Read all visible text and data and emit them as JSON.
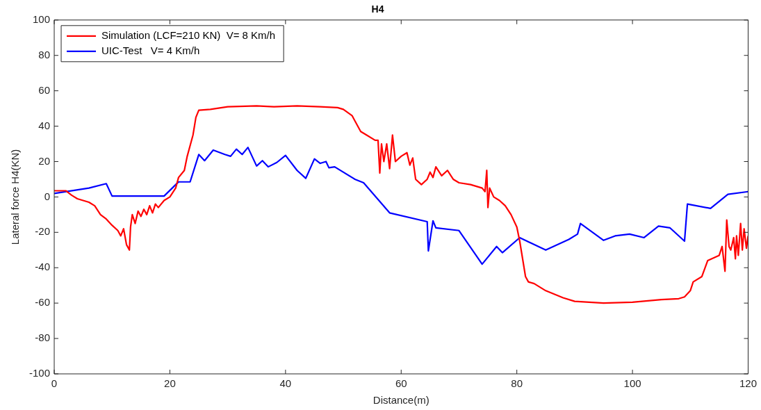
{
  "chart_data": {
    "type": "line",
    "title": "H4",
    "xlabel": "Distance(m)",
    "ylabel": "Lateral force H4(KN)",
    "xlim": [
      0,
      120
    ],
    "xticks": [
      0,
      20,
      40,
      60,
      80,
      100,
      120
    ],
    "ylim": [
      -100,
      100
    ],
    "yticks": [
      -100,
      -80,
      -60,
      -40,
      -20,
      0,
      20,
      40,
      60,
      80,
      100
    ],
    "grid": false,
    "legend": "top left",
    "marker": "none",
    "line_style": "solid",
    "series": [
      {
        "name": "Simulation (LCF=210 KN)  V= 8 Km/h",
        "color": "#ff0000",
        "x": [
          0,
          2,
          3,
          4,
          6,
          7,
          8,
          9,
          10,
          11,
          11.5,
          12,
          12.5,
          13,
          13.2,
          13.5,
          14,
          14.5,
          15,
          15.5,
          16,
          16.5,
          17,
          17.5,
          18,
          19,
          20,
          21,
          21.5,
          22.5,
          23,
          24,
          24.5,
          25,
          27,
          30,
          35,
          38,
          42,
          46,
          49,
          50,
          51.5,
          52,
          53,
          54,
          55.5,
          56,
          56.3,
          56.6,
          57,
          57.5,
          58,
          58.5,
          59,
          60,
          61,
          61.5,
          62,
          62.5,
          63.5,
          64.5,
          65,
          65.5,
          66,
          67,
          68,
          69,
          70,
          72,
          74,
          74.5,
          74.8,
          75,
          75.3,
          76,
          77,
          78,
          79,
          80,
          80.5,
          81,
          81.5,
          82,
          83,
          85,
          88,
          90,
          95,
          100,
          105,
          108,
          109,
          110,
          110.5,
          112,
          113,
          115,
          115.5,
          116,
          116.3,
          116.7,
          117,
          117.5,
          117.8,
          118,
          118.3,
          118.7,
          119,
          119.3,
          119.7,
          120
        ],
        "values": [
          3.5,
          3.5,
          1,
          -1,
          -3,
          -5,
          -10,
          -12.5,
          -16,
          -19,
          -22,
          -18,
          -27,
          -30,
          -17,
          -10,
          -15,
          -8,
          -11,
          -7,
          -10,
          -5,
          -9,
          -4,
          -6,
          -2,
          0,
          5,
          11,
          15,
          23,
          35,
          45,
          49,
          49.5,
          51,
          51.5,
          51,
          51.5,
          51,
          50.5,
          49.5,
          46,
          43,
          37,
          35,
          32,
          32,
          13.5,
          30,
          20,
          30,
          16,
          35,
          20,
          23,
          25,
          18,
          22,
          10,
          7,
          10,
          14,
          11,
          17,
          12,
          15,
          10,
          8,
          7,
          5,
          3,
          15,
          -6,
          5,
          0,
          -2,
          -5,
          -10,
          -17,
          -25,
          -35,
          -45,
          -48,
          -49,
          -53,
          -57,
          -59,
          -60,
          -59.5,
          -58,
          -57.5,
          -56.5,
          -53,
          -48,
          -45,
          -36,
          -33,
          -28,
          -42,
          -13,
          -28,
          -30,
          -23,
          -35,
          -22,
          -33,
          -15,
          -30,
          -18,
          -29,
          -22
        ]
      },
      {
        "name": "UIC-Test   V= 4 Km/h",
        "color": "#0000ff",
        "x": [
          0,
          6,
          9,
          10,
          19,
          21.5,
          23.5,
          25,
          26,
          27.5,
          29.5,
          30.5,
          31.5,
          32.5,
          33.5,
          35,
          36,
          37,
          38.5,
          40,
          42,
          43.5,
          45,
          46,
          47,
          47.5,
          48.5,
          52,
          53.5,
          58,
          64.5,
          64.7,
          65.5,
          66,
          70,
          74,
          76.5,
          77.5,
          80.5,
          85,
          89,
          90.5,
          91,
          95,
          97,
          99.5,
          102,
          104.5,
          106.5,
          109,
          109.5,
          113.5,
          116.5,
          120
        ],
        "values": [
          2,
          5,
          7.5,
          0.5,
          0.5,
          8.5,
          8.5,
          24,
          20.5,
          26.5,
          24,
          23,
          27,
          24,
          28,
          17.5,
          20.5,
          17,
          19.5,
          23.5,
          15,
          10.5,
          21.5,
          19,
          20,
          16.5,
          17,
          10,
          8,
          -9,
          -14,
          -30.5,
          -13.5,
          -17.5,
          -19,
          -38,
          -28,
          -31.5,
          -23,
          -30,
          -24,
          -21,
          -15,
          -24.5,
          -22,
          -21,
          -23,
          -16.5,
          -17.5,
          -25,
          -4,
          -6.5,
          1.5,
          3
        ]
      }
    ]
  }
}
